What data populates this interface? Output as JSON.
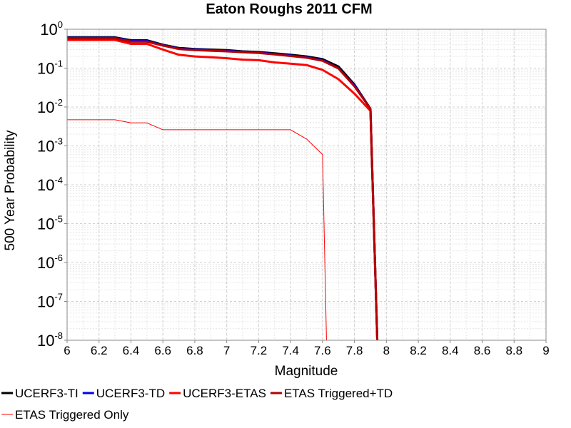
{
  "chart_data": {
    "type": "line",
    "title": "Eaton Roughs 2011 CFM",
    "xlabel": "Magnitude",
    "ylabel": "500 Year Probability",
    "xlim": [
      6,
      9
    ],
    "ylim": [
      1e-08,
      1
    ],
    "yscale": "log",
    "grid": true,
    "legend_position": "bottom",
    "xticks": [
      "6",
      "6.2",
      "6.4",
      "6.6",
      "6.8",
      "7",
      "7.2",
      "7.4",
      "7.6",
      "7.8",
      "8",
      "8.2",
      "8.4",
      "8.6",
      "8.8",
      "9"
    ],
    "yticks": [
      {
        "base": "10",
        "exp": "0",
        "value": 1
      },
      {
        "base": "10",
        "exp": "-1",
        "value": 0.1
      },
      {
        "base": "10",
        "exp": "-2",
        "value": 0.01
      },
      {
        "base": "10",
        "exp": "-3",
        "value": 0.001
      },
      {
        "base": "10",
        "exp": "-4",
        "value": 0.0001
      },
      {
        "base": "10",
        "exp": "-5",
        "value": 1e-05
      },
      {
        "base": "10",
        "exp": "-6",
        "value": 1e-06
      },
      {
        "base": "10",
        "exp": "-7",
        "value": 1e-07
      },
      {
        "base": "10",
        "exp": "-8",
        "value": 1e-08
      }
    ],
    "series": [
      {
        "name": "UCERF3-TI",
        "color": "#000000",
        "width": 3,
        "x": [
          6.0,
          6.1,
          6.2,
          6.3,
          6.4,
          6.5,
          6.6,
          6.7,
          6.8,
          6.9,
          7.0,
          7.1,
          7.2,
          7.3,
          7.4,
          7.5,
          7.6,
          7.7,
          7.8,
          7.9,
          7.95
        ],
        "y": [
          0.62,
          0.62,
          0.62,
          0.62,
          0.52,
          0.52,
          0.4,
          0.33,
          0.31,
          0.3,
          0.29,
          0.27,
          0.26,
          0.24,
          0.22,
          0.2,
          0.17,
          0.11,
          0.038,
          0.009,
          1e-09
        ]
      },
      {
        "name": "UCERF3-TD",
        "color": "#0000e6",
        "width": 3,
        "x": [
          6.0,
          6.1,
          6.2,
          6.3,
          6.4,
          6.5,
          6.6,
          6.7,
          6.8,
          6.9,
          7.0,
          7.1,
          7.2,
          7.3,
          7.4,
          7.5,
          7.6,
          7.7,
          7.8,
          7.9,
          7.95
        ],
        "y": [
          0.6,
          0.6,
          0.6,
          0.6,
          0.5,
          0.5,
          0.39,
          0.32,
          0.3,
          0.29,
          0.28,
          0.26,
          0.25,
          0.23,
          0.21,
          0.19,
          0.16,
          0.1,
          0.036,
          0.009,
          1e-09
        ]
      },
      {
        "name": "UCERF3-ETAS",
        "color": "#ff0000",
        "width": 3,
        "x": [
          6.0,
          6.1,
          6.2,
          6.3,
          6.4,
          6.5,
          6.6,
          6.7,
          6.8,
          6.9,
          7.0,
          7.1,
          7.2,
          7.3,
          7.4,
          7.5,
          7.6,
          7.7,
          7.8,
          7.9,
          7.95
        ],
        "y": [
          0.53,
          0.53,
          0.53,
          0.53,
          0.42,
          0.42,
          0.3,
          0.22,
          0.2,
          0.19,
          0.18,
          0.165,
          0.16,
          0.14,
          0.13,
          0.12,
          0.09,
          0.052,
          0.022,
          0.008,
          1e-09
        ]
      },
      {
        "name": "ETAS Triggered+TD",
        "color": "#b30000",
        "width": 3,
        "x": [
          6.0,
          6.1,
          6.2,
          6.3,
          6.4,
          6.5,
          6.6,
          6.7,
          6.8,
          6.9,
          7.0,
          7.1,
          7.2,
          7.3,
          7.4,
          7.5,
          7.6,
          7.7,
          7.8,
          7.9,
          7.95
        ],
        "y": [
          0.58,
          0.58,
          0.58,
          0.58,
          0.48,
          0.48,
          0.38,
          0.31,
          0.29,
          0.28,
          0.27,
          0.255,
          0.245,
          0.225,
          0.205,
          0.185,
          0.155,
          0.098,
          0.034,
          0.009,
          1e-09
        ]
      },
      {
        "name": "ETAS Triggered Only",
        "color": "#ff0000",
        "width": 1,
        "x": [
          6.0,
          6.1,
          6.2,
          6.3,
          6.4,
          6.5,
          6.6,
          6.7,
          6.8,
          6.9,
          7.0,
          7.1,
          7.2,
          7.3,
          7.4,
          7.5,
          7.6,
          7.63
        ],
        "y": [
          0.0047,
          0.0047,
          0.0047,
          0.0047,
          0.0039,
          0.0039,
          0.0026,
          0.0026,
          0.0026,
          0.0026,
          0.0026,
          0.0026,
          0.0026,
          0.0026,
          0.0026,
          0.0015,
          0.0006,
          1e-09
        ]
      }
    ]
  }
}
